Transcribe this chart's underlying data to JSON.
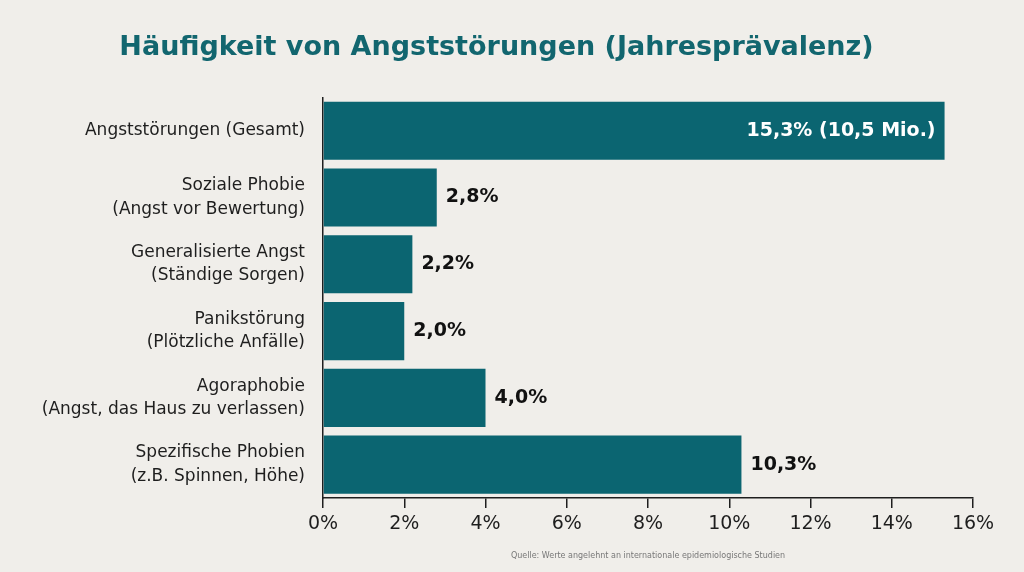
{
  "chart_data": {
    "type": "bar",
    "orientation": "horizontal",
    "title": "Häufigkeit von Angststörungen (Jahresprävalenz)",
    "categories": [
      "Angststörungen (Gesamt)",
      "Soziale Phobie\n(Angst vor Bewertung)",
      "Generalisierte Angst\n(Ständige Sorgen)",
      "Panikstörung\n(Plötzliche Anfälle)",
      "Agoraphobie\n(Angst, das Haus zu verlassen)",
      "Spezifische Phobien\n(z.B. Spinnen, Höhe)"
    ],
    "values": [
      15.3,
      2.8,
      2.2,
      2.0,
      4.0,
      10.3
    ],
    "color": "#0b6571",
    "value_labels": [
      "15,3% (10,5 Mio.)",
      "2,8%",
      "2,2%",
      "2,0%",
      "4,0%",
      "10,3%"
    ],
    "xlim": [
      0,
      16
    ],
    "xticks": [
      {
        "value": 0,
        "label": "0%"
      },
      {
        "value": 2,
        "label": "2%"
      },
      {
        "value": 4,
        "label": "4%"
      },
      {
        "value": 6,
        "label": "6%"
      },
      {
        "value": 8,
        "label": "8%"
      },
      {
        "value": 10,
        "label": "10%"
      },
      {
        "value": 12,
        "label": "12%"
      },
      {
        "value": 14,
        "label": "14%"
      },
      {
        "value": 16,
        "label": "16%"
      }
    ],
    "annotations": [
      "Quelle: Werte angelehnt an internationale epidemiologische Studien"
    ]
  }
}
